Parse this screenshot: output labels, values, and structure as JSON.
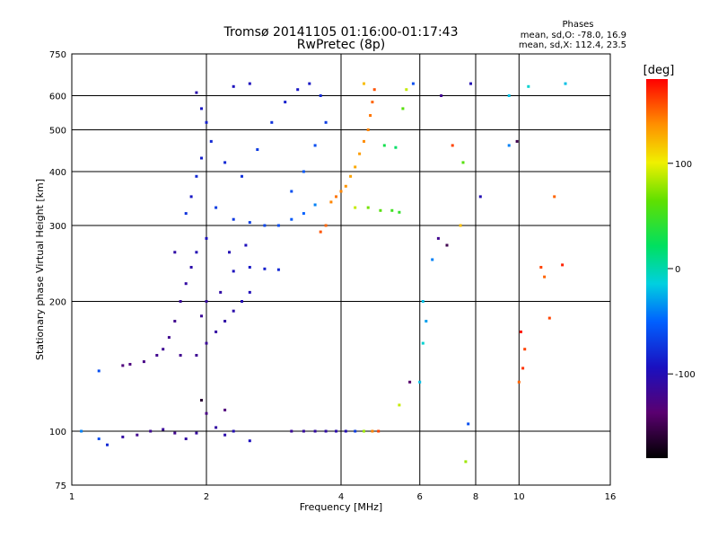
{
  "header": {
    "title": "Tromsø 20141105 01:16:00-01:17:43",
    "subtitle": "RwPretec (8p)"
  },
  "stats": {
    "heading": "Phases",
    "line_o": "mean, sd,O: -78.0, 16.9",
    "line_x": "mean, sd,X: 112.4, 23.5"
  },
  "chart_data": {
    "type": "scatter",
    "xlabel": "Frequency [MHz]",
    "ylabel": "Stationary phase Virtual Height [km]",
    "x_scale": "log2",
    "y_scale": "log",
    "xlim": [
      1,
      16
    ],
    "ylim": [
      75,
      750
    ],
    "x_ticks": [
      "1",
      "2",
      "4",
      "6",
      "8",
      "10",
      "16"
    ],
    "x_tick_values": [
      1,
      2,
      4,
      6,
      8,
      10,
      16
    ],
    "y_ticks": [
      "750",
      "600",
      "500",
      "400",
      "300",
      "200",
      "100",
      "75"
    ],
    "y_tick_values": [
      750,
      600,
      500,
      400,
      300,
      200,
      100,
      75
    ],
    "grid": true,
    "colorbar": {
      "label": "[deg]",
      "range": [
        -180,
        180
      ],
      "ticks": [
        "100",
        "0",
        "-100"
      ],
      "tick_values": [
        100,
        0,
        -100
      ]
    },
    "series": [
      {
        "points": [
          {
            "x": 1.9,
            "y": 610,
            "phase": -105
          },
          {
            "x": 1.95,
            "y": 560,
            "phase": -90
          },
          {
            "x": 2.0,
            "y": 520,
            "phase": -85
          },
          {
            "x": 2.05,
            "y": 470,
            "phase": -80
          },
          {
            "x": 1.95,
            "y": 430,
            "phase": -85
          },
          {
            "x": 1.9,
            "y": 390,
            "phase": -80
          },
          {
            "x": 1.85,
            "y": 350,
            "phase": -90
          },
          {
            "x": 1.8,
            "y": 320,
            "phase": -75
          },
          {
            "x": 2.1,
            "y": 330,
            "phase": -70
          },
          {
            "x": 2.3,
            "y": 310,
            "phase": -72
          },
          {
            "x": 2.5,
            "y": 305,
            "phase": -68
          },
          {
            "x": 2.7,
            "y": 300,
            "phase": -65
          },
          {
            "x": 2.9,
            "y": 300,
            "phase": -60
          },
          {
            "x": 3.1,
            "y": 310,
            "phase": -55
          },
          {
            "x": 3.3,
            "y": 320,
            "phase": -50
          },
          {
            "x": 3.5,
            "y": 335,
            "phase": -40
          },
          {
            "x": 2.2,
            "y": 420,
            "phase": -80
          },
          {
            "x": 2.4,
            "y": 390,
            "phase": -75
          },
          {
            "x": 2.6,
            "y": 450,
            "phase": -70
          },
          {
            "x": 2.8,
            "y": 520,
            "phase": -75
          },
          {
            "x": 3.0,
            "y": 580,
            "phase": -85
          },
          {
            "x": 3.2,
            "y": 620,
            "phase": -90
          },
          {
            "x": 2.5,
            "y": 640,
            "phase": -95
          },
          {
            "x": 2.3,
            "y": 630,
            "phase": -95
          },
          {
            "x": 3.4,
            "y": 640,
            "phase": -90
          },
          {
            "x": 3.6,
            "y": 600,
            "phase": -80
          },
          {
            "x": 3.7,
            "y": 520,
            "phase": -70
          },
          {
            "x": 3.5,
            "y": 460,
            "phase": -60
          },
          {
            "x": 3.3,
            "y": 400,
            "phase": -55
          },
          {
            "x": 3.1,
            "y": 360,
            "phase": -60
          },
          {
            "x": 2.0,
            "y": 280,
            "phase": -95
          },
          {
            "x": 1.9,
            "y": 260,
            "phase": -100
          },
          {
            "x": 1.85,
            "y": 240,
            "phase": -105
          },
          {
            "x": 1.8,
            "y": 220,
            "phase": -110
          },
          {
            "x": 1.75,
            "y": 200,
            "phase": -115
          },
          {
            "x": 1.7,
            "y": 180,
            "phase": -120
          },
          {
            "x": 1.65,
            "y": 165,
            "phase": -120
          },
          {
            "x": 1.6,
            "y": 155,
            "phase": -118
          },
          {
            "x": 1.55,
            "y": 150,
            "phase": -120
          },
          {
            "x": 1.45,
            "y": 145,
            "phase": -125
          },
          {
            "x": 1.35,
            "y": 143,
            "phase": -128
          },
          {
            "x": 1.3,
            "y": 142,
            "phase": -130
          },
          {
            "x": 1.75,
            "y": 150,
            "phase": -120
          },
          {
            "x": 1.9,
            "y": 150,
            "phase": -118
          },
          {
            "x": 2.0,
            "y": 160,
            "phase": -115
          },
          {
            "x": 2.1,
            "y": 170,
            "phase": -110
          },
          {
            "x": 2.2,
            "y": 180,
            "phase": -108
          },
          {
            "x": 2.3,
            "y": 190,
            "phase": -105
          },
          {
            "x": 2.4,
            "y": 200,
            "phase": -100
          },
          {
            "x": 2.5,
            "y": 210,
            "phase": -98
          },
          {
            "x": 2.3,
            "y": 235,
            "phase": -95
          },
          {
            "x": 2.5,
            "y": 240,
            "phase": -90
          },
          {
            "x": 2.7,
            "y": 238,
            "phase": -85
          },
          {
            "x": 2.9,
            "y": 237,
            "phase": -80
          },
          {
            "x": 2.0,
            "y": 200,
            "phase": -112
          },
          {
            "x": 1.95,
            "y": 185,
            "phase": -115
          },
          {
            "x": 2.15,
            "y": 210,
            "phase": -108
          },
          {
            "x": 2.25,
            "y": 260,
            "phase": -100
          },
          {
            "x": 2.45,
            "y": 270,
            "phase": -96
          },
          {
            "x": 1.7,
            "y": 260,
            "phase": -108
          },
          {
            "x": 3.8,
            "y": 340,
            "phase": 140
          },
          {
            "x": 3.9,
            "y": 350,
            "phase": 145
          },
          {
            "x": 4.0,
            "y": 360,
            "phase": 140
          },
          {
            "x": 4.1,
            "y": 370,
            "phase": 135
          },
          {
            "x": 4.2,
            "y": 390,
            "phase": 130
          },
          {
            "x": 4.3,
            "y": 410,
            "phase": 128
          },
          {
            "x": 4.4,
            "y": 440,
            "phase": 132
          },
          {
            "x": 4.5,
            "y": 470,
            "phase": 138
          },
          {
            "x": 4.6,
            "y": 500,
            "phase": 140
          },
          {
            "x": 4.65,
            "y": 540,
            "phase": 145
          },
          {
            "x": 4.7,
            "y": 580,
            "phase": 150
          },
          {
            "x": 4.75,
            "y": 620,
            "phase": 155
          },
          {
            "x": 4.5,
            "y": 640,
            "phase": 120
          },
          {
            "x": 3.7,
            "y": 300,
            "phase": 150
          },
          {
            "x": 3.6,
            "y": 290,
            "phase": 155
          },
          {
            "x": 4.3,
            "y": 330,
            "phase": 90
          },
          {
            "x": 4.6,
            "y": 330,
            "phase": 70
          },
          {
            "x": 4.9,
            "y": 325,
            "phase": 60
          },
          {
            "x": 5.2,
            "y": 325,
            "phase": 50
          },
          {
            "x": 5.4,
            "y": 322,
            "phase": 45
          },
          {
            "x": 5.0,
            "y": 460,
            "phase": 30
          },
          {
            "x": 5.3,
            "y": 455,
            "phase": 20
          },
          {
            "x": 5.5,
            "y": 560,
            "phase": 60
          },
          {
            "x": 5.6,
            "y": 620,
            "phase": 90
          },
          {
            "x": 5.8,
            "y": 640,
            "phase": -60
          },
          {
            "x": 6.7,
            "y": 600,
            "phase": -120
          },
          {
            "x": 7.8,
            "y": 640,
            "phase": -100
          },
          {
            "x": 9.5,
            "y": 600,
            "phase": -20
          },
          {
            "x": 10.5,
            "y": 630,
            "phase": -10
          },
          {
            "x": 7.1,
            "y": 460,
            "phase": 160
          },
          {
            "x": 7.5,
            "y": 420,
            "phase": 60
          },
          {
            "x": 8.2,
            "y": 350,
            "phase": -100
          },
          {
            "x": 7.4,
            "y": 300,
            "phase": 120
          },
          {
            "x": 9.9,
            "y": 470,
            "phase": -150
          },
          {
            "x": 9.5,
            "y": 460,
            "phase": -40
          },
          {
            "x": 12.7,
            "y": 640,
            "phase": -20
          },
          {
            "x": 12.0,
            "y": 350,
            "phase": 150
          },
          {
            "x": 11.2,
            "y": 240,
            "phase": 160
          },
          {
            "x": 11.4,
            "y": 228,
            "phase": 150
          },
          {
            "x": 12.5,
            "y": 243,
            "phase": 170
          },
          {
            "x": 11.7,
            "y": 183,
            "phase": 160
          },
          {
            "x": 10.1,
            "y": 170,
            "phase": 175
          },
          {
            "x": 10.3,
            "y": 155,
            "phase": 160
          },
          {
            "x": 10.2,
            "y": 140,
            "phase": 165
          },
          {
            "x": 10.0,
            "y": 130,
            "phase": 150
          },
          {
            "x": 6.4,
            "y": 250,
            "phase": -40
          },
          {
            "x": 6.1,
            "y": 200,
            "phase": -20
          },
          {
            "x": 6.2,
            "y": 180,
            "phase": -30
          },
          {
            "x": 6.1,
            "y": 160,
            "phase": -10
          },
          {
            "x": 6.0,
            "y": 130,
            "phase": -20
          },
          {
            "x": 6.6,
            "y": 280,
            "phase": -120
          },
          {
            "x": 6.9,
            "y": 270,
            "phase": -150
          },
          {
            "x": 7.7,
            "y": 104,
            "phase": -60
          },
          {
            "x": 7.6,
            "y": 85,
            "phase": 80
          },
          {
            "x": 5.7,
            "y": 130,
            "phase": -140
          },
          {
            "x": 5.4,
            "y": 115,
            "phase": 90
          },
          {
            "x": 3.1,
            "y": 100,
            "phase": -115
          },
          {
            "x": 3.3,
            "y": 100,
            "phase": -112
          },
          {
            "x": 3.5,
            "y": 100,
            "phase": -110
          },
          {
            "x": 3.7,
            "y": 100,
            "phase": -108
          },
          {
            "x": 3.9,
            "y": 100,
            "phase": -105
          },
          {
            "x": 4.1,
            "y": 100,
            "phase": -100
          },
          {
            "x": 4.3,
            "y": 100,
            "phase": -70
          },
          {
            "x": 4.5,
            "y": 100,
            "phase": 80
          },
          {
            "x": 4.7,
            "y": 100,
            "phase": 140
          },
          {
            "x": 4.85,
            "y": 100,
            "phase": 160
          },
          {
            "x": 1.05,
            "y": 100,
            "phase": -40
          },
          {
            "x": 1.15,
            "y": 96,
            "phase": -60
          },
          {
            "x": 1.2,
            "y": 93,
            "phase": -80
          },
          {
            "x": 1.3,
            "y": 97,
            "phase": -110
          },
          {
            "x": 1.4,
            "y": 98,
            "phase": -120
          },
          {
            "x": 1.5,
            "y": 100,
            "phase": -118
          },
          {
            "x": 1.6,
            "y": 101,
            "phase": -115
          },
          {
            "x": 1.7,
            "y": 99,
            "phase": -120
          },
          {
            "x": 1.8,
            "y": 96,
            "phase": -110
          },
          {
            "x": 1.9,
            "y": 99,
            "phase": -112
          },
          {
            "x": 2.1,
            "y": 102,
            "phase": -110
          },
          {
            "x": 2.2,
            "y": 98,
            "phase": -105
          },
          {
            "x": 2.3,
            "y": 100,
            "phase": -100
          },
          {
            "x": 2.5,
            "y": 95,
            "phase": -95
          },
          {
            "x": 2.0,
            "y": 110,
            "phase": -125
          },
          {
            "x": 2.2,
            "y": 112,
            "phase": -130
          },
          {
            "x": 1.95,
            "y": 118,
            "phase": -160
          },
          {
            "x": 1.15,
            "y": 138,
            "phase": -60
          }
        ]
      }
    ]
  }
}
